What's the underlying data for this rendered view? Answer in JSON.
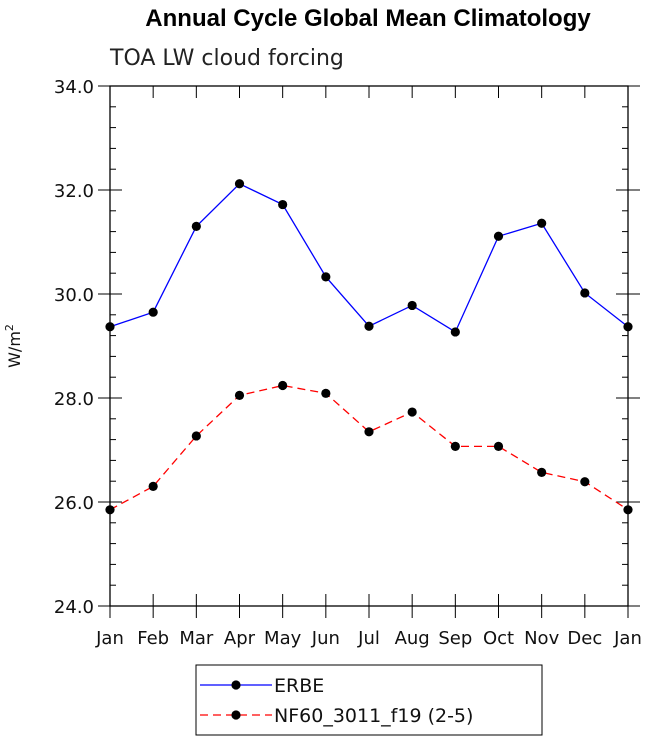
{
  "chart_data": {
    "type": "line",
    "title": "Annual Cycle Global Mean Climatology",
    "subtitle": "TOA LW cloud forcing",
    "xlabel": "",
    "ylabel": "W/m",
    "ylabel_superscript": "2",
    "categories": [
      "Jan",
      "Feb",
      "Mar",
      "Apr",
      "May",
      "Jun",
      "Jul",
      "Aug",
      "Sep",
      "Oct",
      "Nov",
      "Dec",
      "Jan"
    ],
    "ylim": [
      24.0,
      34.0
    ],
    "yticks": [
      "24.0",
      "26.0",
      "28.0",
      "30.0",
      "32.0",
      "34.0"
    ],
    "grid": false,
    "legend_position": "bottom-center",
    "series": [
      {
        "name": "ERBE",
        "color": "#0000ff",
        "line_style": "solid",
        "marker": "filled-circle",
        "values": [
          29.37,
          29.65,
          31.3,
          32.12,
          31.72,
          30.33,
          29.38,
          29.78,
          29.27,
          31.11,
          31.36,
          30.02,
          29.37
        ]
      },
      {
        "name": "NF60_3011_f19 (2-5)",
        "color": "#ff0000",
        "line_style": "dashed",
        "marker": "filled-circle",
        "values": [
          25.85,
          26.3,
          27.27,
          28.05,
          28.24,
          28.09,
          27.35,
          27.73,
          27.07,
          27.07,
          26.57,
          26.39,
          25.85
        ]
      }
    ]
  }
}
